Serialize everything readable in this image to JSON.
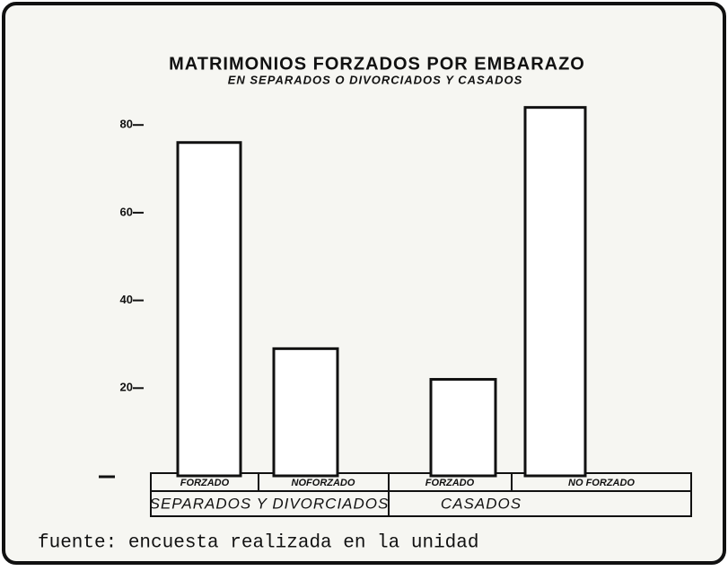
{
  "chart_data": {
    "type": "bar",
    "title": "MATRIMONIOS FORZADOS POR EMBARAZO",
    "subtitle": "EN SEPARADOS O DIVORCIADOS Y CASADOS",
    "categories": [
      "FORZADO",
      "NOFORZADO",
      "FORZADO",
      "NO FORZADO"
    ],
    "groups": [
      "SEPARADOS Y DIVORCIADOS",
      "CASADOS"
    ],
    "values": [
      76,
      29,
      22,
      84
    ],
    "color": "#ffffff",
    "ylim": [
      0,
      87
    ],
    "yticks": [
      20,
      40,
      60,
      80
    ],
    "grid": false,
    "source": "fuente: encuesta realizada en la unidad"
  }
}
